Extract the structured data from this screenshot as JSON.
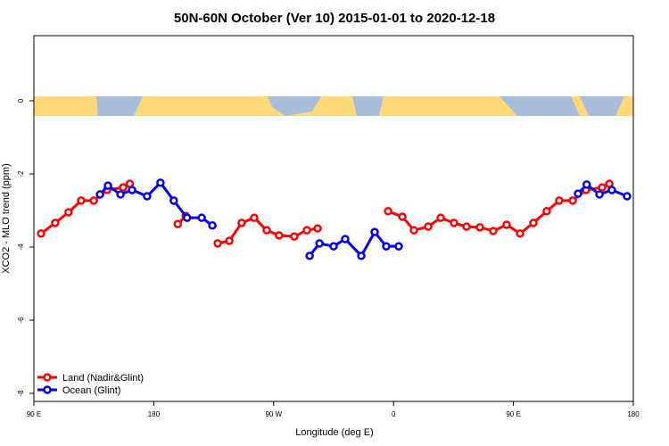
{
  "chart_data": {
    "type": "line",
    "title": "50N-60N October (Ver 10)   2015-01-01 to 2020-12-18",
    "x_label": "Longitude (deg E)",
    "y_label": "XCO2 - MLO trend (ppm)",
    "xlim": [
      90,
      540
    ],
    "xticks": [
      {
        "value": 90,
        "label": "90 E"
      },
      {
        "value": 180,
        "label": "180"
      },
      {
        "value": 270,
        "label": "90 W"
      },
      {
        "value": 360,
        "label": "0"
      },
      {
        "value": 450,
        "label": "90 E"
      },
      {
        "value": 540,
        "label": "180"
      }
    ],
    "ylim": [
      -8.22,
      1.78
    ],
    "yticks": [
      -8,
      -6,
      -4,
      -2,
      0
    ],
    "legend": "bottom-left",
    "series": [
      {
        "name": "Land (Nadir&Glint)",
        "color": "#ff0000",
        "x": [
          95.4,
          106,
          116,
          125.5,
          135,
          145,
          157,
          162,
          null,
          198,
          204,
          null,
          228,
          236.7,
          246,
          255.4,
          264.8,
          274,
          285.5,
          295,
          303,
          null,
          355.9,
          366.6,
          375.3,
          386,
          395.4,
          405.4,
          414.8,
          424.8,
          434.9,
          444.9,
          455,
          465,
          475,
          484.4,
          494.5,
          504.5,
          516.6,
          522
        ],
        "values": [
          -3.63,
          -3.34,
          -3.05,
          -2.73,
          -2.73,
          -2.44,
          -2.37,
          -2.27,
          null,
          -3.37,
          -3.15,
          null,
          -3.9,
          -3.83,
          -3.34,
          -3.2,
          -3.54,
          -3.68,
          -3.71,
          -3.54,
          -3.49,
          null,
          -3.02,
          -3.17,
          -3.54,
          -3.44,
          -3.2,
          -3.34,
          -3.44,
          -3.46,
          -3.56,
          -3.39,
          -3.63,
          -3.34,
          -3.02,
          -2.73,
          -2.73,
          -2.44,
          -2.37,
          -2.27
        ]
      },
      {
        "name": "Ocean (Glint)",
        "color": "#0000ee",
        "x": [
          139.6,
          145.6,
          155,
          163.7,
          175,
          185,
          195,
          205,
          216,
          224,
          null,
          297,
          304.4,
          315,
          323.7,
          335.8,
          345.8,
          354.5,
          363.9,
          null,
          498.5,
          505,
          514.6,
          523.9,
          535.3
        ],
        "values": [
          -2.56,
          -2.32,
          -2.56,
          -2.44,
          -2.61,
          -2.24,
          -2.73,
          -3.2,
          -3.2,
          -3.41,
          null,
          -4.24,
          -3.9,
          -3.98,
          -3.78,
          -4.24,
          -3.59,
          -3.98,
          -3.98,
          null,
          -2.54,
          -2.29,
          -2.56,
          -2.44,
          -2.61
        ]
      }
    ]
  }
}
